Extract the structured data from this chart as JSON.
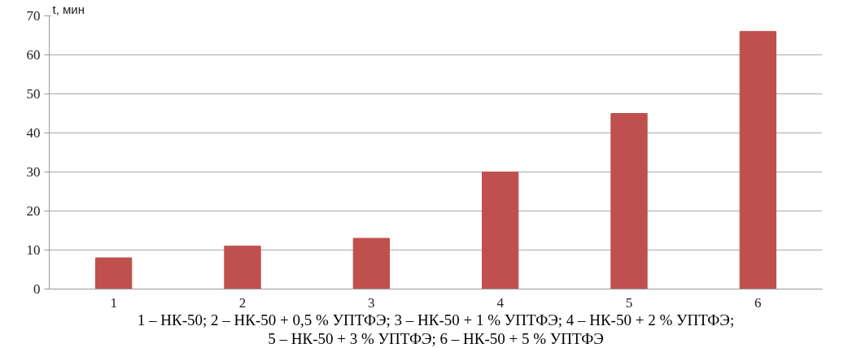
{
  "chart_data": {
    "type": "bar",
    "ylabel": "t, мин",
    "categories": [
      "1",
      "2",
      "3",
      "4",
      "5",
      "6"
    ],
    "values": [
      8,
      11,
      13,
      30,
      45,
      66
    ],
    "color": "#c0504d",
    "ylim": [
      0,
      70
    ],
    "yticks": [
      0,
      10,
      20,
      30,
      40,
      50,
      60,
      70
    ],
    "grid": "y",
    "annotations": [
      "1 – НК-50; 2 – НК-50 + 0,5 % УПТФЭ; 3 – НК-50 + 1 % УПТФЭ; 4 – НК-50 + 2 % УПТФЭ;",
      "5 – НК-50 + 3 % УПТФЭ; 6 – НК-50 + 5 % УПТФЭ"
    ]
  }
}
